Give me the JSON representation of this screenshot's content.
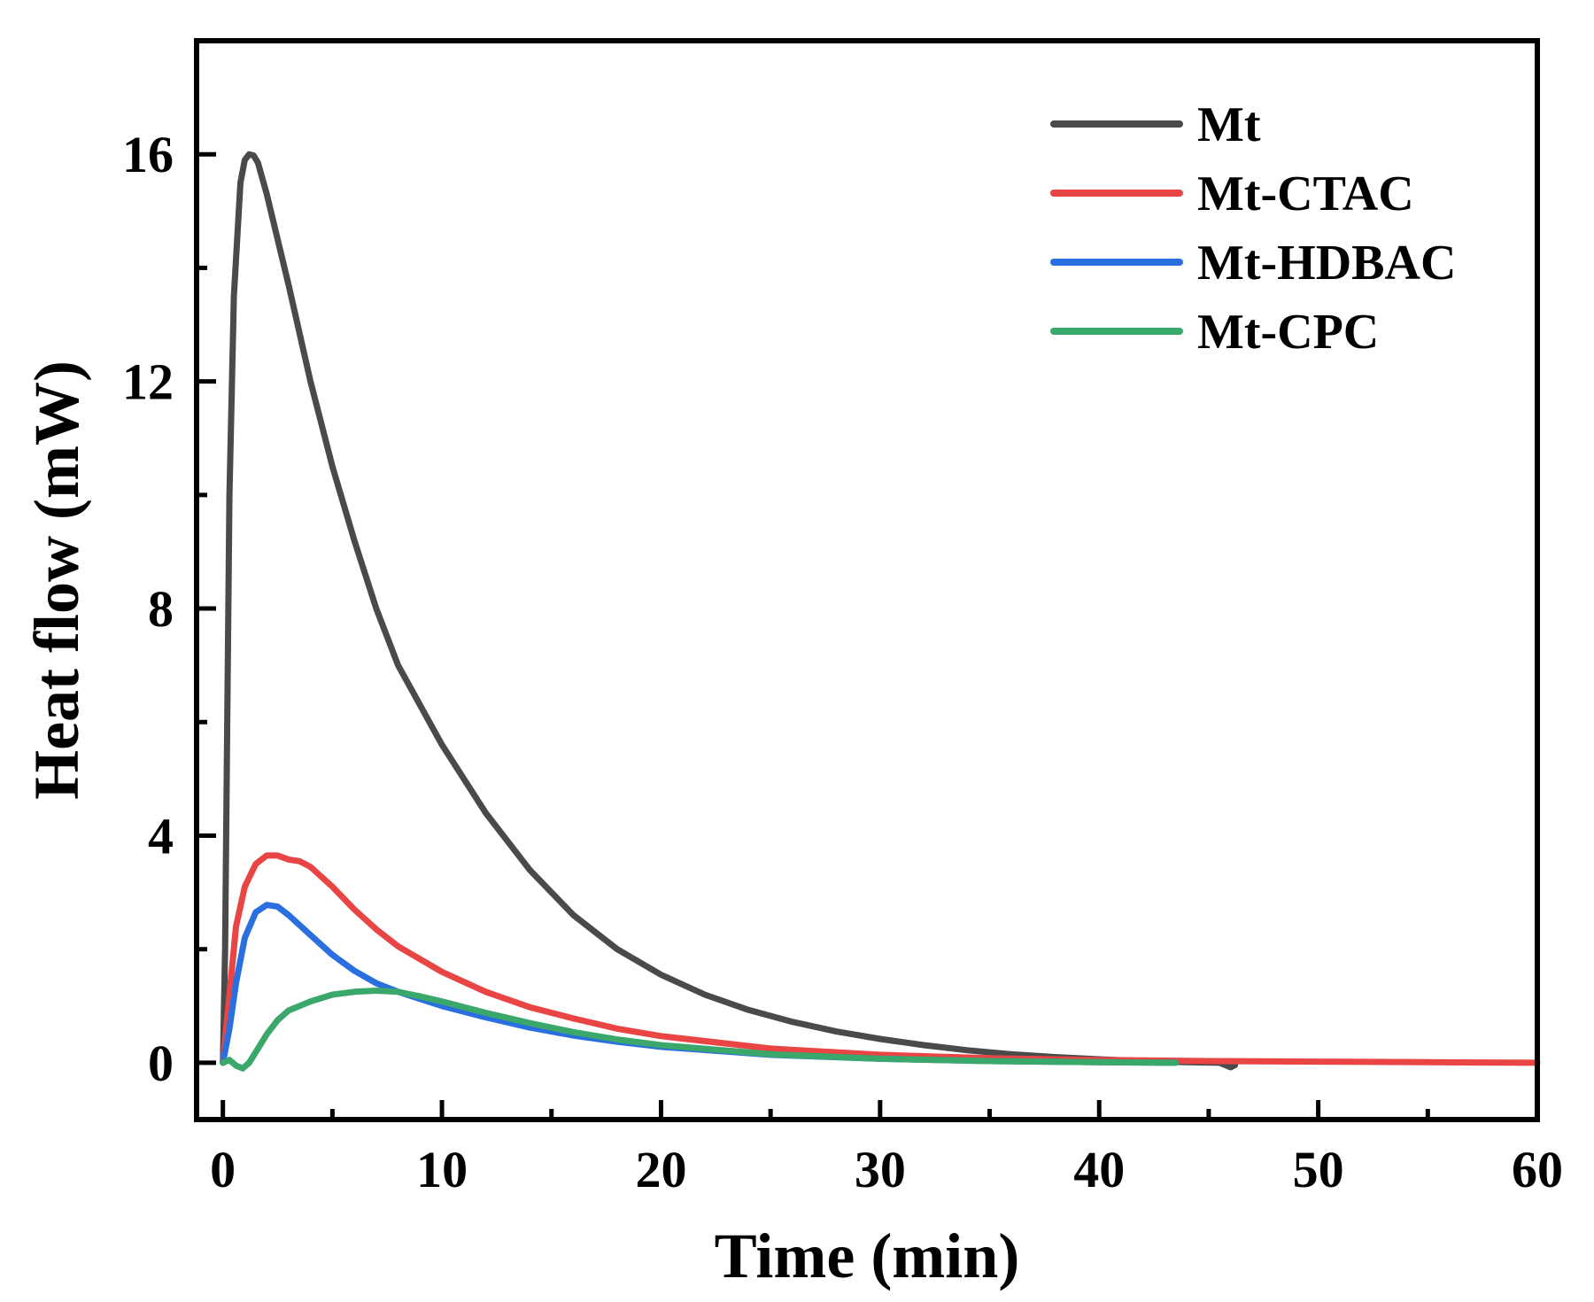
{
  "chart_data": {
    "type": "line",
    "title": "",
    "xlabel": "Time (min)",
    "ylabel": "Heat flow (mW)",
    "xlim": [
      -1.2,
      60
    ],
    "ylim": [
      -1.0,
      18.0
    ],
    "xticks": [
      0,
      10,
      20,
      30,
      40,
      50,
      60
    ],
    "xtick_labels": [
      "0",
      "10",
      "20",
      "30",
      "40",
      "50",
      "60"
    ],
    "xminor": [
      5,
      15,
      25,
      35,
      45,
      55
    ],
    "yticks": [
      0,
      4,
      8,
      12,
      16
    ],
    "ytick_labels": [
      "0",
      "4",
      "8",
      "12",
      "16"
    ],
    "yminor": [
      2,
      6,
      10,
      14
    ],
    "legend_position": "top-right",
    "grid": false,
    "series": [
      {
        "name": "Mt",
        "color": "#4a4a4a",
        "x": [
          0,
          0.1,
          0.2,
          0.3,
          0.5,
          0.8,
          1.0,
          1.2,
          1.4,
          1.6,
          2.0,
          3.0,
          4.0,
          5.0,
          6.0,
          7.0,
          8.0,
          10.0,
          12.0,
          14.0,
          16.0,
          18.0,
          20.0,
          22.0,
          24.0,
          26.0,
          28.0,
          30.0,
          32.0,
          34.0,
          36.0,
          38.0,
          40.0,
          42.0,
          44.0,
          45.5,
          46.0,
          46.2
        ],
        "y": [
          0,
          2,
          6,
          10,
          13.5,
          15.5,
          15.9,
          16.0,
          15.98,
          15.85,
          15.3,
          13.7,
          12.0,
          10.5,
          9.2,
          8.0,
          7.0,
          5.6,
          4.4,
          3.4,
          2.6,
          2.0,
          1.55,
          1.2,
          0.93,
          0.72,
          0.55,
          0.42,
          0.31,
          0.22,
          0.15,
          0.1,
          0.06,
          0.03,
          0.01,
          0,
          -0.08,
          -0.04
        ]
      },
      {
        "name": "Mt-CTAC",
        "color": "#e94545",
        "x": [
          0,
          0.3,
          0.6,
          1.0,
          1.5,
          2.0,
          2.5,
          3.0,
          3.5,
          4.0,
          5.0,
          6.0,
          7.0,
          8.0,
          10.0,
          12.0,
          14.0,
          16.0,
          18.0,
          20.0,
          25.0,
          30.0,
          35.0,
          40.0,
          45.0,
          50.0,
          55.0,
          60.0
        ],
        "y": [
          0,
          1.2,
          2.4,
          3.1,
          3.5,
          3.65,
          3.65,
          3.58,
          3.55,
          3.45,
          3.1,
          2.7,
          2.35,
          2.05,
          1.6,
          1.25,
          0.98,
          0.78,
          0.6,
          0.47,
          0.25,
          0.14,
          0.08,
          0.05,
          0.03,
          0.02,
          0.01,
          0.0
        ]
      },
      {
        "name": "Mt-HDBAC",
        "color": "#2a6fe0",
        "x": [
          0,
          0.3,
          0.6,
          1.0,
          1.5,
          2.0,
          2.5,
          3.0,
          4.0,
          5.0,
          6.0,
          7.0,
          8.0,
          10.0,
          12.0,
          14.0,
          16.0,
          18.0,
          20.0,
          25.0,
          30.0,
          35.0,
          40.0,
          43.5
        ],
        "y": [
          0,
          0.6,
          1.4,
          2.2,
          2.65,
          2.78,
          2.75,
          2.6,
          2.25,
          1.9,
          1.62,
          1.4,
          1.25,
          1.0,
          0.8,
          0.62,
          0.48,
          0.37,
          0.28,
          0.14,
          0.07,
          0.03,
          0.01,
          0.0
        ]
      },
      {
        "name": "Mt-CPC",
        "color": "#3aa86a",
        "x": [
          0,
          0.3,
          0.6,
          0.9,
          1.2,
          1.6,
          2.0,
          2.5,
          3.0,
          4.0,
          5.0,
          6.0,
          7.0,
          8.0,
          9.0,
          10.0,
          12.0,
          14.0,
          16.0,
          18.0,
          20.0,
          25.0,
          30.0,
          35.0,
          40.0,
          43.5
        ],
        "y": [
          0,
          0.05,
          -0.05,
          -0.1,
          0.0,
          0.25,
          0.5,
          0.75,
          0.92,
          1.08,
          1.2,
          1.25,
          1.27,
          1.25,
          1.17,
          1.08,
          0.88,
          0.7,
          0.54,
          0.41,
          0.31,
          0.15,
          0.07,
          0.03,
          0.01,
          0.0
        ]
      }
    ]
  }
}
